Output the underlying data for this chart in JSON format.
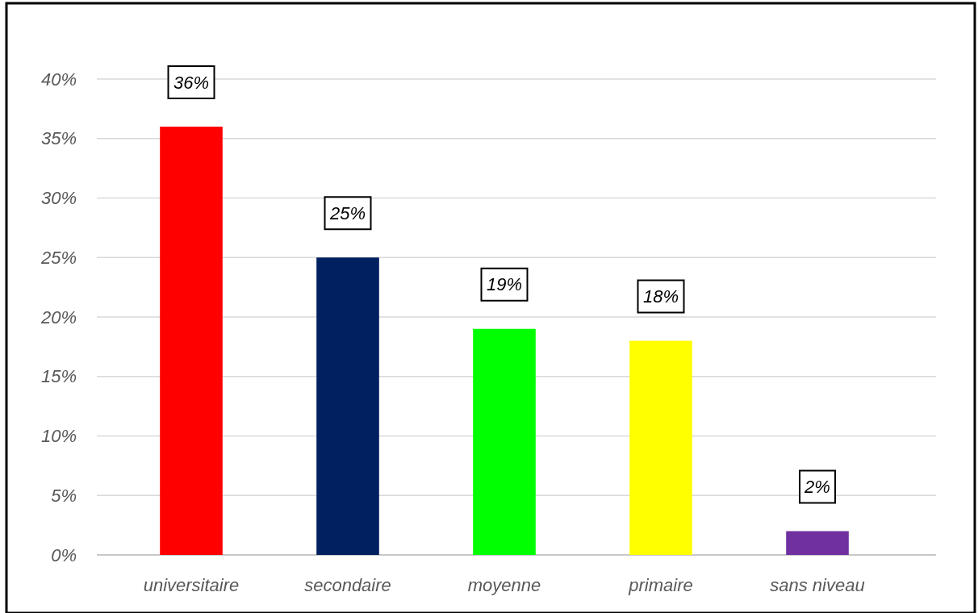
{
  "chart_data": {
    "type": "bar",
    "categories": [
      "universitaire",
      "secondaire",
      "moyenne",
      "primaire",
      "sans niveau"
    ],
    "values": [
      36,
      25,
      19,
      18,
      2
    ],
    "colors": [
      "#ff0000",
      "#002060",
      "#00ff00",
      "#ffff00",
      "#7030a0"
    ],
    "value_labels": [
      "36%",
      "25%",
      "19%",
      "18%",
      "2%"
    ],
    "ylim": [
      0,
      40
    ],
    "yticks": [
      {
        "value": 0,
        "label": "0%"
      },
      {
        "value": 5,
        "label": "5%"
      },
      {
        "value": 10,
        "label": "10%"
      },
      {
        "value": 15,
        "label": "15%"
      },
      {
        "value": 20,
        "label": "20%"
      },
      {
        "value": 25,
        "label": "25%"
      },
      {
        "value": 30,
        "label": "30%"
      },
      {
        "value": 35,
        "label": "35%"
      },
      {
        "value": 40,
        "label": "40%"
      }
    ],
    "grid": "y"
  }
}
